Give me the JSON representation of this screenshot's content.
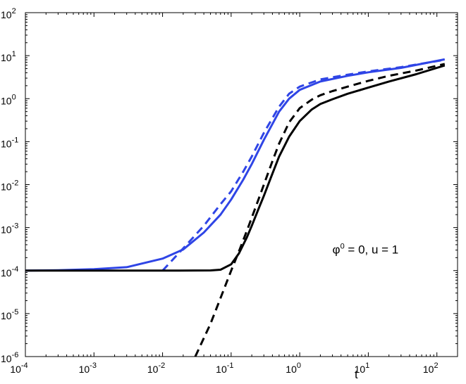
{
  "chart_data": {
    "type": "line",
    "title": "",
    "xlabel": "t",
    "ylabel": "",
    "x_scale": "log",
    "y_scale": "log",
    "xlim": [
      0.0001,
      200
    ],
    "ylim": [
      1e-06,
      100
    ],
    "grid": false,
    "x_ticks": [
      {
        "base": "10",
        "exp": "-4",
        "value": 0.0001
      },
      {
        "base": "10",
        "exp": "-3",
        "value": 0.001
      },
      {
        "base": "10",
        "exp": "-2",
        "value": 0.01
      },
      {
        "base": "10",
        "exp": "-1",
        "value": 0.1
      },
      {
        "base": "10",
        "exp": "0",
        "value": 1
      },
      {
        "base": "10",
        "exp": "1",
        "value": 10
      },
      {
        "base": "10",
        "exp": "2",
        "value": 100
      }
    ],
    "y_ticks": [
      {
        "base": "10",
        "exp": "-6",
        "value": 1e-06
      },
      {
        "base": "10",
        "exp": "-5",
        "value": 1e-05
      },
      {
        "base": "10",
        "exp": "-4",
        "value": 0.0001
      },
      {
        "base": "10",
        "exp": "-3",
        "value": 0.001
      },
      {
        "base": "10",
        "exp": "-2",
        "value": 0.01
      },
      {
        "base": "10",
        "exp": "-1",
        "value": 0.1
      },
      {
        "base": "10",
        "exp": "0",
        "value": 1
      },
      {
        "base": "10",
        "exp": "1",
        "value": 10
      },
      {
        "base": "10",
        "exp": "2",
        "value": 100
      }
    ],
    "annotation": {
      "phi": "φ",
      "phi_sup": "0",
      "text": " = 0,  u = 1",
      "x": 3,
      "y": 0.00025
    },
    "series": [
      {
        "color": "#2f45e6",
        "dash": "solid",
        "x": [
          0.0001,
          0.0003,
          0.001,
          0.003,
          0.01,
          0.02,
          0.04,
          0.07,
          0.1,
          0.15,
          0.2,
          0.3,
          0.5,
          0.7,
          1,
          2,
          5,
          10,
          30,
          130
        ],
        "y": [
          0.0001,
          0.000102,
          0.000108,
          0.00012,
          0.00019,
          0.00031,
          0.00077,
          0.002,
          0.0045,
          0.013,
          0.03,
          0.11,
          0.5,
          1.0,
          1.6,
          2.5,
          3.4,
          4.1,
          5.2,
          8.2
        ]
      },
      {
        "color": "#2f45e6",
        "dash": "dashed",
        "x": [
          0.01,
          0.02,
          0.04,
          0.07,
          0.1,
          0.15,
          0.2,
          0.3,
          0.5,
          0.7,
          1,
          2,
          5,
          10,
          30,
          130
        ],
        "y": [
          0.0001,
          0.00033,
          0.0011,
          0.0035,
          0.007,
          0.02,
          0.045,
          0.16,
          0.65,
          1.3,
          1.9,
          2.8,
          3.6,
          4.3,
          5.4,
          8.0
        ]
      },
      {
        "color": "#000000",
        "dash": "solid",
        "x": [
          0.0001,
          0.001,
          0.01,
          0.05,
          0.07,
          0.1,
          0.13,
          0.17,
          0.2,
          0.25,
          0.3,
          0.4,
          0.5,
          0.7,
          1,
          1.5,
          2,
          3,
          5,
          10,
          20,
          50,
          130
        ],
        "y": [
          0.0001,
          0.0001,
          0.0001,
          0.000101,
          0.000105,
          0.00014,
          0.00025,
          0.0006,
          0.0011,
          0.0027,
          0.0055,
          0.018,
          0.045,
          0.13,
          0.3,
          0.56,
          0.75,
          0.97,
          1.3,
          1.8,
          2.5,
          3.7,
          5.9
        ]
      },
      {
        "color": "#000000",
        "dash": "dashed",
        "x": [
          0.03,
          0.05,
          0.07,
          0.1,
          0.13,
          0.17,
          0.2,
          0.25,
          0.3,
          0.4,
          0.5,
          0.7,
          1,
          1.5,
          2,
          3,
          5,
          10,
          20,
          50,
          130
        ],
        "y": [
          1e-06,
          5.8e-06,
          2.3e-05,
          0.0001,
          0.00028,
          0.00085,
          0.0017,
          0.0045,
          0.01,
          0.035,
          0.09,
          0.28,
          0.6,
          0.95,
          1.2,
          1.5,
          1.9,
          2.6,
          3.4,
          4.5,
          6.4
        ]
      }
    ]
  }
}
